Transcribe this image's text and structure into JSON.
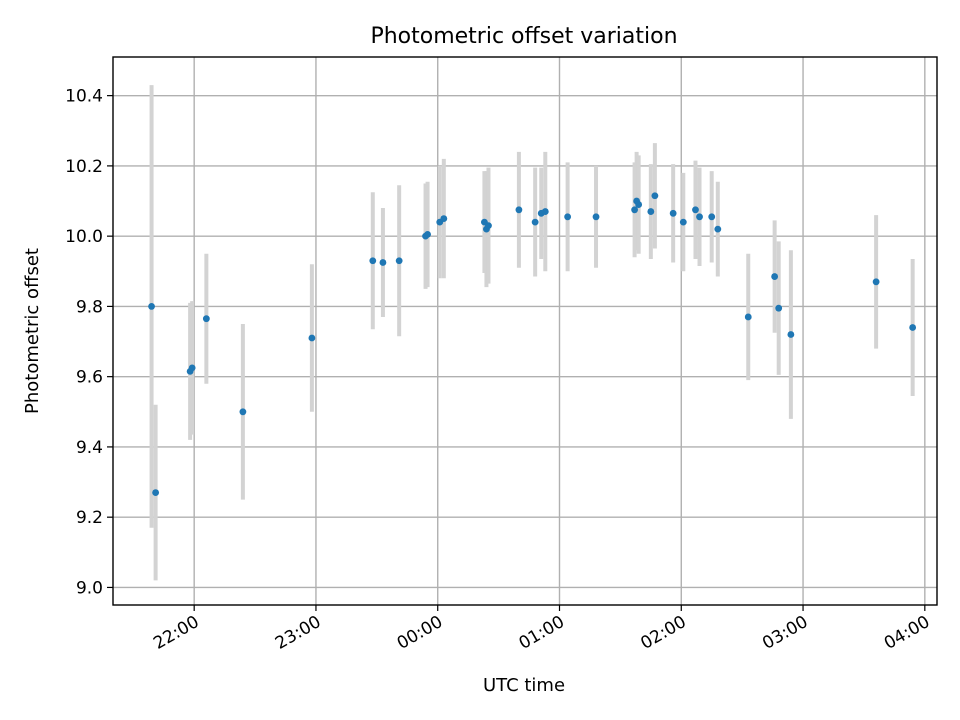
{
  "chart_data": {
    "type": "scatter",
    "title": "Photometric offset variation",
    "xlabel": "UTC time",
    "ylabel": "Photometric offset",
    "grid": true,
    "legend": "none",
    "xlim": [
      "21:20",
      "04:06"
    ],
    "ylim": [
      8.95,
      10.51
    ],
    "x_ticks": [
      "22:00",
      "23:00",
      "00:00",
      "01:00",
      "02:00",
      "03:00",
      "04:00"
    ],
    "y_ticks": [
      "9.0",
      "9.2",
      "9.4",
      "9.6",
      "9.8",
      "10.0",
      "10.2",
      "10.4"
    ],
    "colors": {
      "point": "#1f77b4",
      "error_bar": "#d3d3d3"
    },
    "points": [
      {
        "t": "21:39",
        "y": 9.8,
        "err": 0.63
      },
      {
        "t": "21:41",
        "y": 9.27,
        "err": 0.25
      },
      {
        "t": "21:58",
        "y": 9.615,
        "err": 0.195
      },
      {
        "t": "21:59",
        "y": 9.625,
        "err": 0.19
      },
      {
        "t": "22:06",
        "y": 9.765,
        "err": 0.185
      },
      {
        "t": "22:24",
        "y": 9.5,
        "err": 0.25
      },
      {
        "t": "22:58",
        "y": 9.71,
        "err": 0.21
      },
      {
        "t": "23:28",
        "y": 9.93,
        "err": 0.195
      },
      {
        "t": "23:33",
        "y": 9.925,
        "err": 0.155
      },
      {
        "t": "23:41",
        "y": 9.93,
        "err": 0.215
      },
      {
        "t": "23:54",
        "y": 10.0,
        "err": 0.15
      },
      {
        "t": "23:55",
        "y": 10.005,
        "err": 0.15
      },
      {
        "t": "00:01",
        "y": 10.04,
        "err": 0.16
      },
      {
        "t": "00:03",
        "y": 10.05,
        "err": 0.17
      },
      {
        "t": "00:23",
        "y": 10.04,
        "err": 0.145
      },
      {
        "t": "00:24",
        "y": 10.02,
        "err": 0.165
      },
      {
        "t": "00:25",
        "y": 10.03,
        "err": 0.165
      },
      {
        "t": "00:40",
        "y": 10.075,
        "err": 0.165
      },
      {
        "t": "00:48",
        "y": 10.04,
        "err": 0.155
      },
      {
        "t": "00:51",
        "y": 10.065,
        "err": 0.13
      },
      {
        "t": "00:53",
        "y": 10.07,
        "err": 0.17
      },
      {
        "t": "01:04",
        "y": 10.055,
        "err": 0.155
      },
      {
        "t": "01:18",
        "y": 10.055,
        "err": 0.145
      },
      {
        "t": "01:37",
        "y": 10.075,
        "err": 0.135
      },
      {
        "t": "01:38",
        "y": 10.1,
        "err": 0.14
      },
      {
        "t": "01:39",
        "y": 10.09,
        "err": 0.14
      },
      {
        "t": "01:45",
        "y": 10.07,
        "err": 0.135
      },
      {
        "t": "01:47",
        "y": 10.115,
        "err": 0.15
      },
      {
        "t": "01:56",
        "y": 10.065,
        "err": 0.14
      },
      {
        "t": "02:01",
        "y": 10.04,
        "err": 0.14
      },
      {
        "t": "02:07",
        "y": 10.075,
        "err": 0.14
      },
      {
        "t": "02:09",
        "y": 10.055,
        "err": 0.14
      },
      {
        "t": "02:15",
        "y": 10.055,
        "err": 0.13
      },
      {
        "t": "02:18",
        "y": 10.02,
        "err": 0.135
      },
      {
        "t": "02:33",
        "y": 9.77,
        "err": 0.18
      },
      {
        "t": "02:46",
        "y": 9.885,
        "err": 0.16
      },
      {
        "t": "02:48",
        "y": 9.795,
        "err": 0.19
      },
      {
        "t": "02:54",
        "y": 9.72,
        "err": 0.24
      },
      {
        "t": "03:36",
        "y": 9.87,
        "err": 0.19
      },
      {
        "t": "03:54",
        "y": 9.74,
        "err": 0.195
      }
    ]
  }
}
